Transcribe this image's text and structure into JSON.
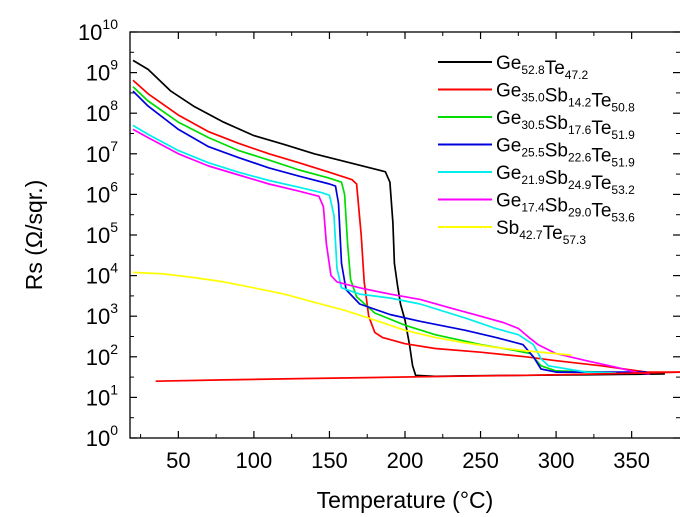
{
  "chart_data": {
    "type": "line",
    "title": "",
    "xlabel": "Temperature (°C)",
    "ylabel": "Rs (Ω/sqr.)",
    "xlim": [
      18,
      382
    ],
    "ylim_log10": [
      0,
      10
    ],
    "yscale": "log",
    "x_ticks": [
      50,
      100,
      150,
      200,
      250,
      300,
      350
    ],
    "y_ticks": [
      {
        "value": 1,
        "base": "10",
        "exp": "0"
      },
      {
        "value": 10,
        "base": "10",
        "exp": "1"
      },
      {
        "value": 100,
        "base": "10",
        "exp": "2"
      },
      {
        "value": 1000,
        "base": "10",
        "exp": "3"
      },
      {
        "value": 10000,
        "base": "10",
        "exp": "4"
      },
      {
        "value": 100000,
        "base": "10",
        "exp": "5"
      },
      {
        "value": 1000000,
        "base": "10",
        "exp": "6"
      },
      {
        "value": 10000000,
        "base": "10",
        "exp": "7"
      },
      {
        "value": 100000000,
        "base": "10",
        "exp": "8"
      },
      {
        "value": 1000000000,
        "base": "10",
        "exp": "9"
      },
      {
        "value": 10000000000,
        "base": "10",
        "exp": "10"
      }
    ],
    "legend_position": "top-right",
    "grid": false,
    "series": [
      {
        "legend": [
          {
            "t": "Ge",
            "s": "52.8"
          },
          {
            "t": "Te",
            "s": "47.2"
          }
        ],
        "color": "#000000",
        "points": [
          [
            20,
            2000000000
          ],
          [
            30,
            1200000000
          ],
          [
            45,
            350000000
          ],
          [
            60,
            150000000
          ],
          [
            80,
            60000000
          ],
          [
            100,
            28000000
          ],
          [
            120,
            17000000
          ],
          [
            140,
            10000000
          ],
          [
            160,
            6500000
          ],
          [
            180,
            4200000
          ],
          [
            187,
            3600000
          ],
          [
            190,
            2000000
          ],
          [
            192,
            200000
          ],
          [
            193,
            20000
          ],
          [
            195,
            6000
          ],
          [
            197,
            2000
          ],
          [
            200,
            800
          ],
          [
            203,
            200
          ],
          [
            205,
            60
          ],
          [
            207,
            35
          ],
          [
            220,
            33
          ],
          [
            240,
            34
          ],
          [
            280,
            35
          ],
          [
            320,
            36
          ],
          [
            350,
            37
          ],
          [
            372,
            38
          ]
        ]
      },
      {
        "legend": [
          {
            "t": "Ge",
            "s": "35.0"
          },
          {
            "t": "Sb",
            "s": "14.2"
          },
          {
            "t": "Te",
            "s": "50.8"
          }
        ],
        "color": "#ff0000",
        "points": [
          [
            20,
            650000000
          ],
          [
            30,
            300000000
          ],
          [
            50,
            90000000
          ],
          [
            70,
            35000000
          ],
          [
            90,
            18000000
          ],
          [
            110,
            10000000
          ],
          [
            130,
            6000000
          ],
          [
            150,
            3500000
          ],
          [
            165,
            2300000
          ],
          [
            168,
            1800000
          ],
          [
            171,
            100000
          ],
          [
            173,
            7000
          ],
          [
            176,
            1000
          ],
          [
            180,
            400
          ],
          [
            185,
            300
          ],
          [
            200,
            210
          ],
          [
            220,
            160
          ],
          [
            250,
            130
          ],
          [
            280,
            100
          ],
          [
            300,
            80
          ],
          [
            330,
            60
          ],
          [
            360,
            42
          ],
          [
            382,
            42
          ]
        ]
      },
      {
        "legend": [
          {
            "t": "Ge",
            "s": "30.5"
          },
          {
            "t": "Sb",
            "s": "17.6"
          },
          {
            "t": "Te",
            "s": "51.9"
          }
        ],
        "color": "#00dd00",
        "points": [
          [
            20,
            450000000
          ],
          [
            30,
            200000000
          ],
          [
            50,
            60000000
          ],
          [
            70,
            25000000
          ],
          [
            90,
            12000000
          ],
          [
            110,
            7000000
          ],
          [
            130,
            4000000
          ],
          [
            150,
            2500000
          ],
          [
            158,
            2000000
          ],
          [
            160,
            1000000
          ],
          [
            162,
            60000
          ],
          [
            164,
            8000
          ],
          [
            168,
            3000
          ],
          [
            180,
            1200
          ],
          [
            200,
            600
          ],
          [
            220,
            350
          ],
          [
            250,
            200
          ],
          [
            270,
            150
          ],
          [
            283,
            120
          ],
          [
            290,
            60
          ],
          [
            300,
            45
          ],
          [
            330,
            42
          ],
          [
            350,
            40
          ]
        ]
      },
      {
        "legend": [
          {
            "t": "Ge",
            "s": "25.5"
          },
          {
            "t": "Sb",
            "s": "22.6"
          },
          {
            "t": "Te",
            "s": "51.9"
          }
        ],
        "color": "#0000dd",
        "points": [
          [
            20,
            350000000
          ],
          [
            30,
            150000000
          ],
          [
            50,
            40000000
          ],
          [
            70,
            15000000
          ],
          [
            90,
            8000000
          ],
          [
            110,
            4500000
          ],
          [
            130,
            2800000
          ],
          [
            150,
            1800000
          ],
          [
            154,
            1600000
          ],
          [
            156,
            600000
          ],
          [
            158,
            20000
          ],
          [
            161,
            4500
          ],
          [
            170,
            2000
          ],
          [
            190,
            1100
          ],
          [
            210,
            750
          ],
          [
            240,
            450
          ],
          [
            260,
            300
          ],
          [
            278,
            200
          ],
          [
            285,
            100
          ],
          [
            290,
            50
          ],
          [
            300,
            42
          ],
          [
            330,
            42
          ],
          [
            360,
            42
          ]
        ]
      },
      {
        "legend": [
          {
            "t": "Ge",
            "s": "21.9"
          },
          {
            "t": "Sb",
            "s": "24.9"
          },
          {
            "t": "Te",
            "s": "53.2"
          }
        ],
        "color": "#00eeee",
        "points": [
          [
            20,
            50000000
          ],
          [
            30,
            30000000
          ],
          [
            50,
            12000000
          ],
          [
            70,
            6000000
          ],
          [
            90,
            3500000
          ],
          [
            110,
            2200000
          ],
          [
            130,
            1500000
          ],
          [
            145,
            1100000
          ],
          [
            150,
            950000
          ],
          [
            153,
            300000
          ],
          [
            155,
            15000
          ],
          [
            158,
            5000
          ],
          [
            170,
            3500
          ],
          [
            190,
            2800
          ],
          [
            210,
            2000
          ],
          [
            240,
            900
          ],
          [
            260,
            500
          ],
          [
            275,
            350
          ],
          [
            285,
            200
          ],
          [
            290,
            90
          ],
          [
            295,
            60
          ],
          [
            320,
            42
          ],
          [
            340,
            40
          ]
        ]
      },
      {
        "legend": [
          {
            "t": "Ge",
            "s": "17.4"
          },
          {
            "t": "Sb",
            "s": "29.0"
          },
          {
            "t": "Te",
            "s": "53.6"
          }
        ],
        "color": "#ff00ff",
        "points": [
          [
            20,
            40000000
          ],
          [
            30,
            25000000
          ],
          [
            50,
            10000000
          ],
          [
            70,
            5000000
          ],
          [
            90,
            3000000
          ],
          [
            110,
            1800000
          ],
          [
            130,
            1200000
          ],
          [
            143,
            900000
          ],
          [
            146,
            500000
          ],
          [
            148,
            60000
          ],
          [
            151,
            10000
          ],
          [
            155,
            7000
          ],
          [
            170,
            5000
          ],
          [
            190,
            3500
          ],
          [
            210,
            2600
          ],
          [
            230,
            1600
          ],
          [
            250,
            1000
          ],
          [
            265,
            700
          ],
          [
            275,
            500
          ],
          [
            282,
            300
          ],
          [
            288,
            200
          ],
          [
            300,
            120
          ],
          [
            320,
            80
          ],
          [
            340,
            55
          ],
          [
            355,
            40
          ],
          [
            362,
            38
          ]
        ]
      },
      {
        "legend": [
          {
            "t": "Sb",
            "s": "42.7"
          },
          {
            "t": "Te",
            "s": "57.3"
          }
        ],
        "color": "#ffff00",
        "points": [
          [
            20,
            12000
          ],
          [
            40,
            11000
          ],
          [
            60,
            9000
          ],
          [
            80,
            7000
          ],
          [
            100,
            5000
          ],
          [
            120,
            3500
          ],
          [
            140,
            2200
          ],
          [
            160,
            1400
          ],
          [
            180,
            800
          ],
          [
            200,
            450
          ],
          [
            220,
            300
          ],
          [
            240,
            220
          ],
          [
            260,
            170
          ],
          [
            280,
            140
          ],
          [
            300,
            120
          ],
          [
            310,
            110
          ]
        ]
      },
      {
        "legend": [],
        "color": "#ff0000",
        "points": [
          [
            35,
            25
          ],
          [
            80,
            27
          ],
          [
            130,
            29
          ],
          [
            180,
            31
          ],
          [
            230,
            33
          ],
          [
            280,
            35
          ],
          [
            330,
            38
          ],
          [
            382,
            42
          ]
        ]
      }
    ]
  }
}
